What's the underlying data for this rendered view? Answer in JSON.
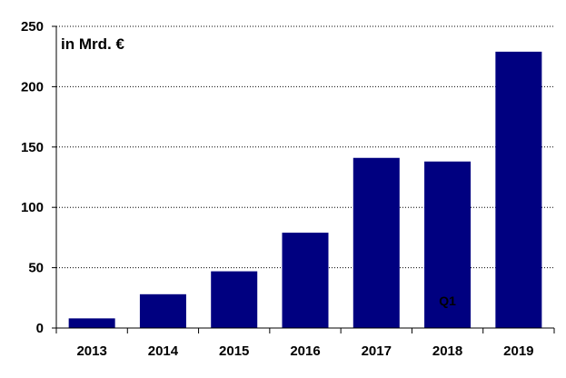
{
  "chart_data": {
    "type": "bar",
    "categories": [
      "2013",
      "2014",
      "2015",
      "2016",
      "2017",
      "2018",
      "2019"
    ],
    "values": [
      8,
      28,
      47,
      79,
      141,
      138,
      229
    ],
    "ylim": [
      0,
      250
    ],
    "yticks": [
      0,
      50,
      100,
      150,
      200,
      250
    ],
    "unit_label": "in Mrd. €",
    "annotation": {
      "text": "Q1",
      "category": "2018"
    },
    "bar_color": "#000080",
    "grid": "horizontal dotted",
    "legend": "none"
  }
}
